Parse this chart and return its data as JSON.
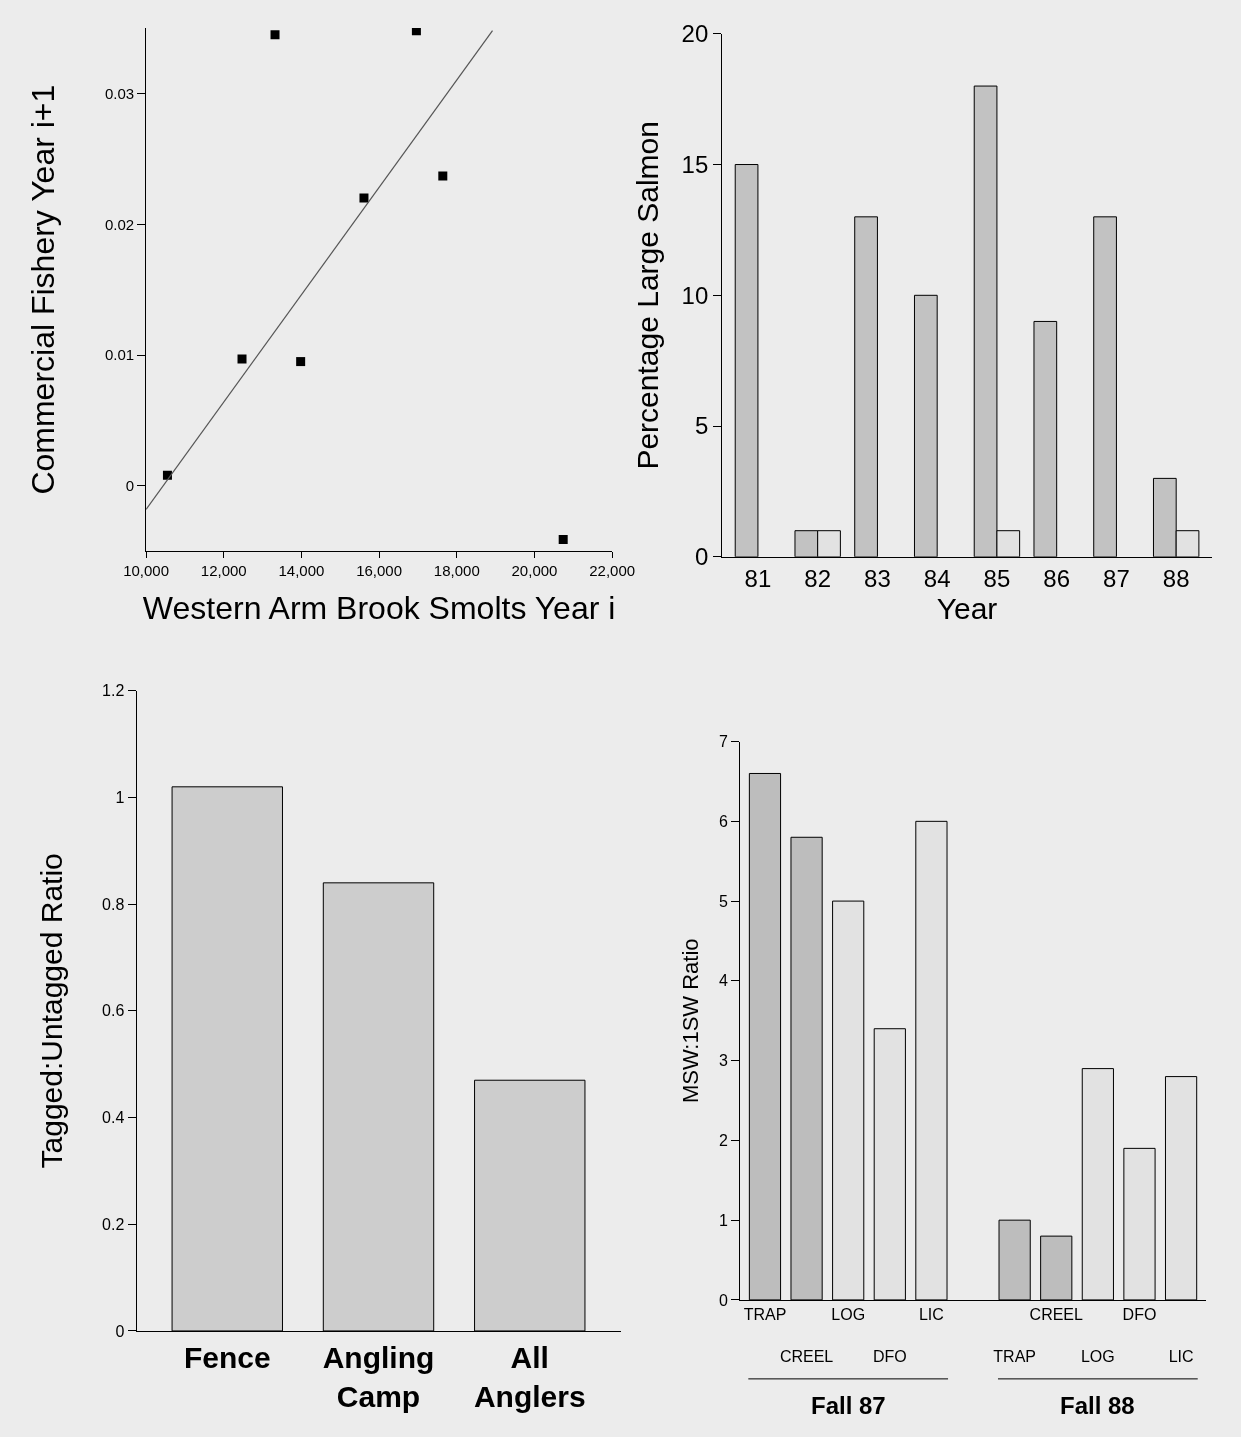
{
  "chart_data": [
    {
      "type": "scatter",
      "xlabel": "Western Arm Brook Smolts Year i",
      "ylabel": "Commercial Fishery Year i+1",
      "xlim": [
        10000,
        22000
      ],
      "ylim": [
        -0.005,
        0.035
      ],
      "xticks": [
        {
          "value": 10000,
          "label": "10,000"
        },
        {
          "value": 12000,
          "label": "12,000"
        },
        {
          "value": 14000,
          "label": "14,000"
        },
        {
          "value": 16000,
          "label": "16,000"
        },
        {
          "value": 18000,
          "label": "18,000"
        },
        {
          "value": 20000,
          "label": "20,000"
        },
        {
          "value": 22000,
          "label": "22,000"
        }
      ],
      "yticks": [
        0,
        0.01,
        0.02,
        0.03
      ],
      "series": [
        {
          "color": "#000000",
          "marker": "square",
          "x": [
            10550,
            12470,
            13320,
            13980,
            15610,
            16960,
            17640,
            20740
          ],
          "values": [
            0.0008,
            0.0097,
            0.0345,
            0.0095,
            0.022,
            0.0348,
            0.0237,
            -0.0041
          ]
        },
        {
          "type": "line",
          "marker": "none",
          "color": "#555555",
          "x": [
            10000,
            18920
          ],
          "values": [
            -0.0018,
            0.0348
          ]
        }
      ]
    },
    {
      "type": "bar",
      "xlabel": "Year",
      "ylabel": "Percentage Large Salmon",
      "categories": [
        "81",
        "82",
        "83",
        "84",
        "85",
        "86",
        "87",
        "88"
      ],
      "ylim": [
        0,
        20
      ],
      "yticks": [
        0,
        5,
        10,
        15,
        20
      ],
      "series": [
        {
          "color": "#c2c2c2",
          "values": [
            15,
            1,
            13,
            10,
            18,
            9,
            13,
            3
          ]
        },
        {
          "color": "#e2e2e2",
          "values": [
            null,
            1,
            null,
            null,
            1,
            null,
            null,
            1
          ]
        }
      ]
    },
    {
      "type": "bar",
      "ylabel": "Tagged:Untagged Ratio",
      "categories": [
        "Fence",
        "Angling Camp",
        "All Anglers"
      ],
      "ylim": [
        0,
        1.2
      ],
      "yticks": [
        0,
        0.2,
        0.4,
        0.6,
        0.8,
        1,
        1.2
      ],
      "values": [
        1.02,
        0.84,
        0.47
      ],
      "color": "#cdcdcd"
    },
    {
      "type": "bar",
      "ylabel": "MSW:1SW Ratio",
      "categories": [
        "TRAP",
        "CREEL",
        "LOG",
        "DFO",
        "LIC",
        null,
        "TRAP",
        "CREEL",
        "LOG",
        "DFO",
        "LIC"
      ],
      "ylim": [
        0,
        7
      ],
      "yticks": [
        0,
        1,
        2,
        3,
        4,
        5,
        6,
        7
      ],
      "values": [
        6.6,
        5.8,
        5.0,
        3.4,
        6.0,
        null,
        1.0,
        0.8,
        2.9,
        1.9,
        2.8
      ],
      "colors": [
        "#bdbdbd",
        "#bdbdbd",
        "#e2e2e2",
        "#e2e2e2",
        "#e2e2e2",
        null,
        "#bdbdbd",
        "#bdbdbd",
        "#e2e2e2",
        "#e2e2e2",
        "#e2e2e2"
      ],
      "annotations": [
        "Fall 87",
        "Fall 88"
      ]
    }
  ]
}
